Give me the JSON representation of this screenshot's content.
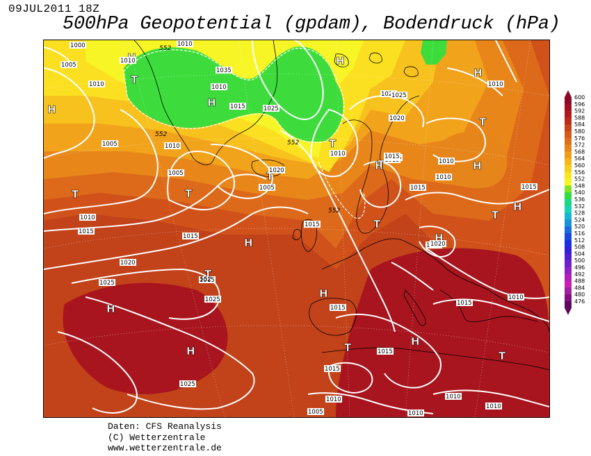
{
  "header": {
    "datetime": "09JUL2011 18Z",
    "title": "500hPa Geopotential (gpdam), Bodendruck (hPa)"
  },
  "footer": {
    "source": "Daten: CFS Reanalysis",
    "copyright": "(C) Wetterzentrale",
    "url": "www.wetterzentrale.de"
  },
  "legend": {
    "levels": [
      "600",
      "596",
      "592",
      "588",
      "584",
      "580",
      "576",
      "572",
      "568",
      "564",
      "560",
      "556",
      "552",
      "548",
      "540",
      "536",
      "532",
      "528",
      "524",
      "520",
      "516",
      "512",
      "508",
      "504",
      "500",
      "496",
      "492",
      "488",
      "484",
      "480",
      "476"
    ],
    "colors": [
      "#8b0a26",
      "#a01020",
      "#b0191c",
      "#bd2a1b",
      "#c8421a",
      "#d35a1a",
      "#dd6f1a",
      "#e6861a",
      "#ef9d1a",
      "#f5b51c",
      "#f9cd1f",
      "#fbe421",
      "#f7f526",
      "#80e32a",
      "#32dc40",
      "#18d884",
      "#1ad2b5",
      "#1ab4d2",
      "#1a90d6",
      "#1a6cda",
      "#1a48de",
      "#1a30e0",
      "#3020d8",
      "#5020d0",
      "#7020c8",
      "#9020c0",
      "#b020b8",
      "#c820b0",
      "#a020a0",
      "#801080",
      "#600860"
    ]
  },
  "pressure_labels": [
    "1000",
    "1005",
    "1010",
    "1015",
    "1020",
    "1025"
  ],
  "map": {
    "highs": [
      {
        "t": "H"
      },
      {
        "t": "H"
      },
      {
        "t": "H"
      },
      {
        "t": "H"
      },
      {
        "t": "H"
      },
      {
        "t": "H"
      },
      {
        "t": "H"
      },
      {
        "t": "H"
      },
      {
        "t": "H"
      },
      {
        "t": "H"
      },
      {
        "t": "H"
      },
      {
        "t": "H"
      },
      {
        "t": "H"
      },
      {
        "t": "H"
      }
    ],
    "lows": [
      {
        "t": "T"
      },
      {
        "t": "T"
      },
      {
        "t": "T"
      },
      {
        "t": "T"
      },
      {
        "t": "T"
      },
      {
        "t": "T"
      },
      {
        "t": "T"
      },
      {
        "t": "T"
      },
      {
        "t": "T"
      },
      {
        "t": "T"
      },
      {
        "t": "T"
      },
      {
        "t": "T"
      }
    ],
    "isobar_labels": [
      {
        "v": "1000"
      },
      {
        "v": "1010"
      },
      {
        "v": "1005"
      },
      {
        "v": "1010"
      },
      {
        "v": "1010"
      },
      {
        "v": "1005"
      },
      {
        "v": "1010"
      },
      {
        "v": "1005"
      },
      {
        "v": "1010"
      },
      {
        "v": "1015"
      },
      {
        "v": "1035"
      },
      {
        "v": "1010"
      },
      {
        "v": "1015"
      },
      {
        "v": "1025"
      },
      {
        "v": "1020"
      },
      {
        "v": "1020"
      },
      {
        "v": "1015"
      },
      {
        "v": "1020"
      },
      {
        "v": "1015"
      },
      {
        "v": "1025"
      },
      {
        "v": "1020"
      },
      {
        "v": "1025"
      },
      {
        "v": "1025"
      },
      {
        "v": "1015"
      },
      {
        "v": "1010"
      },
      {
        "v": "1005"
      },
      {
        "v": "1010"
      },
      {
        "v": "1015"
      },
      {
        "v": "1015"
      },
      {
        "v": "1010"
      },
      {
        "v": "1015"
      },
      {
        "v": "1015"
      },
      {
        "v": "1020"
      },
      {
        "v": "1015"
      },
      {
        "v": "1015"
      },
      {
        "v": "1010"
      },
      {
        "v": "1010"
      },
      {
        "v": "1015"
      },
      {
        "v": "1010"
      },
      {
        "v": "1015"
      },
      {
        "v": "1015"
      },
      {
        "v": "1010"
      },
      {
        "v": "1010"
      },
      {
        "v": "1010"
      },
      {
        "v": "1005"
      },
      {
        "v": "1025"
      },
      {
        "v": "1015"
      }
    ],
    "geopot_labels": [
      {
        "v": "552"
      },
      {
        "v": "552"
      },
      {
        "v": "552"
      },
      {
        "v": "552"
      },
      {
        "v": "552"
      }
    ]
  }
}
